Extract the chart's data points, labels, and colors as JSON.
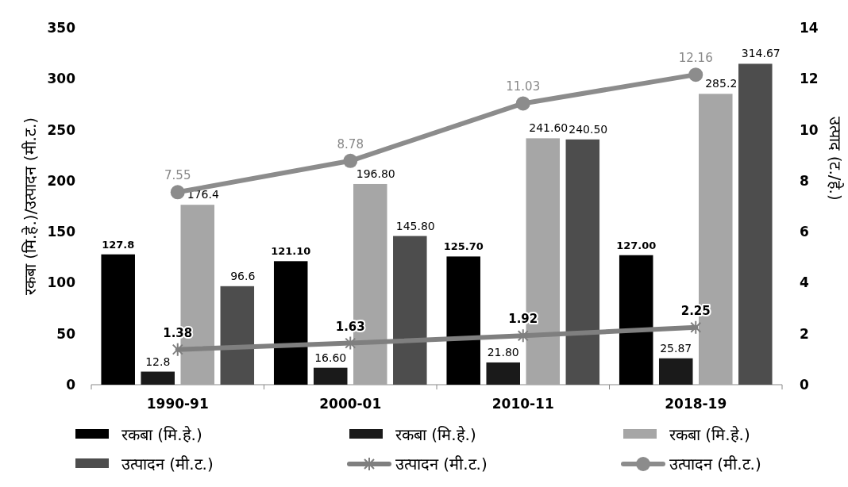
{
  "chart_data": {
    "type": "bar",
    "categories": [
      "1990-91",
      "2000-01",
      "2010-11",
      "2018-19"
    ],
    "ylabel": "रकबा (मि.हे.)/उत्पादन (मी.ट.)",
    "y2label": "उत्पाद (ट./हे.)",
    "ylim": [
      0,
      350
    ],
    "yticks": [
      0,
      50,
      100,
      150,
      200,
      250,
      300,
      350
    ],
    "y2lim": [
      0,
      14
    ],
    "y2ticks": [
      0,
      2,
      4,
      6,
      8,
      10,
      12,
      14
    ],
    "grid": false,
    "legend": "bottom",
    "data_labels": true,
    "series": [
      {
        "name": "रकबा (मि.हे.)",
        "color": "#000000",
        "values": [
          127.8,
          121.1,
          125.7,
          127.0
        ],
        "value_labels": [
          "127.8",
          "121.10",
          "125.70",
          "127.00"
        ]
      },
      {
        "name": "रकबा (मि.हे.)",
        "color": "#1a1a1a",
        "values": [
          12.8,
          16.6,
          21.8,
          25.87
        ],
        "value_labels": [
          "12.8",
          "16.60",
          "21.80",
          "25.87"
        ]
      },
      {
        "name": "रकबा (मि.हे.)",
        "color": "#a6a6a6",
        "values": [
          176.4,
          196.8,
          241.6,
          285.2
        ],
        "value_labels": [
          "176.4",
          "196.80",
          "241.60",
          "285.2"
        ]
      },
      {
        "name": "उत्पादन (मी.ट.)",
        "color": "#4d4d4d",
        "values": [
          96.6,
          145.8,
          240.5,
          314.67
        ],
        "value_labels": [
          "96.6",
          "145.80",
          "240.50",
          "314.67"
        ]
      },
      {
        "name": "उत्पादन (मी.ट.)",
        "type": "line",
        "axis": "y2",
        "marker": "cross",
        "color": "#7f7f7f",
        "values": [
          1.38,
          1.63,
          1.92,
          2.25
        ],
        "value_labels": [
          "1.38",
          "1.63",
          "1.92",
          "2.25"
        ]
      },
      {
        "name": "उत्पादन (मी.ट.)",
        "type": "line",
        "axis": "y2",
        "marker": "circle",
        "color": "#8c8c8c",
        "values": [
          7.55,
          8.78,
          11.03,
          12.16
        ],
        "value_labels": [
          "7.55",
          "8.78",
          "11.03",
          "12.16"
        ]
      }
    ]
  }
}
